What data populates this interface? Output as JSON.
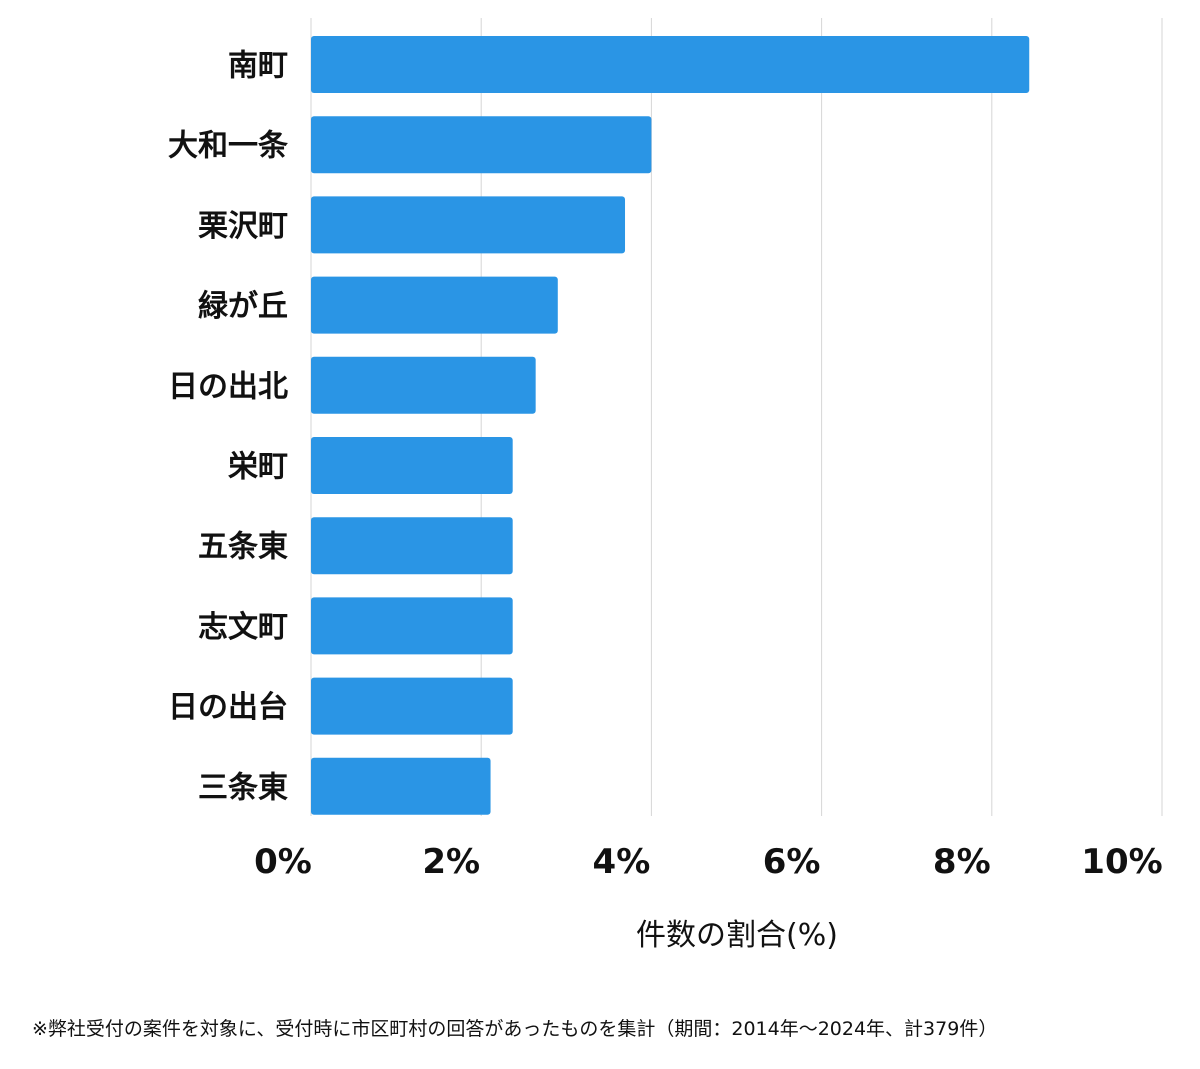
{
  "chart_data": {
    "type": "bar",
    "orientation": "horizontal",
    "categories": [
      "南町",
      "大和一条",
      "栗沢町",
      "緑が丘",
      "日の出北",
      "栄町",
      "五条東",
      "志文町",
      "日の出台",
      "三条東"
    ],
    "values": [
      8.44,
      4.0,
      3.69,
      2.9,
      2.64,
      2.37,
      2.37,
      2.37,
      2.37,
      2.11
    ],
    "xlabel": "件数の割合(%)",
    "xlim": [
      0,
      10
    ],
    "xticks": [
      "0%",
      "2%",
      "4%",
      "6%",
      "8%",
      "10%"
    ],
    "grid": "vertical",
    "legend": "none",
    "bar_color": "#2a95e5"
  },
  "footnote": "※弊社受付の案件を対象に、受付時に市区町村の回答があったものを集計（期間：2014年〜2024年、計379件）"
}
